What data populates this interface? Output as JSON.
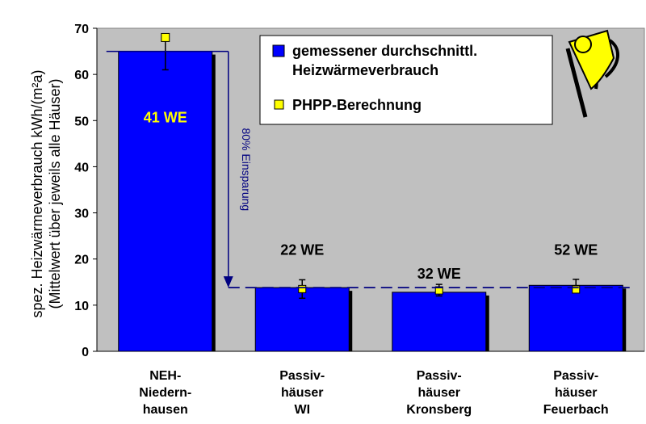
{
  "chart_data": {
    "type": "bar",
    "categories": [
      [
        "NEH-",
        "Niedern-",
        "hausen"
      ],
      [
        "Passiv-",
        "häuser",
        "WI"
      ],
      [
        "Passiv-",
        "häuser",
        "Kronsberg"
      ],
      [
        "Passiv-",
        "häuser",
        "Feuerbach"
      ]
    ],
    "series": [
      {
        "name": "gemessener durchschnittl. Heizwärmeverbrauch",
        "values": [
          65,
          13.8,
          12.8,
          14.3
        ],
        "error_low": [
          61,
          11.5,
          12.0,
          12.8
        ],
        "error_high": [
          68,
          15.5,
          14.5,
          15.6
        ],
        "color": "#0000ff"
      },
      {
        "name": "PHPP-Berechnung",
        "values": [
          68,
          13.5,
          13.2,
          13.4
        ],
        "color": "#ffff00"
      }
    ],
    "bar_labels": [
      "41 WE",
      "22 WE",
      "32 WE",
      "52 WE"
    ],
    "bar_label_colors": [
      "#ffff00",
      "#000000",
      "#000000",
      "#000000"
    ],
    "ylabel": [
      "spez. Heizwärmeverbrauch kWh/(m²a)",
      "(Mittelwert über jeweils alle Häuser)"
    ],
    "ylim": [
      0,
      70
    ],
    "yticks": [
      0,
      10,
      20,
      30,
      40,
      50,
      60,
      70
    ],
    "annotation": {
      "text": "80% Einsparung",
      "from_value": 65,
      "to_value": 13.8
    },
    "legend": {
      "placement": "top-right",
      "entries": [
        [
          "gemessener durchschnittl.",
          "Heizwärmeverbrauch"
        ],
        [
          "PHPP-Berechnung"
        ]
      ]
    },
    "plot_background": "#c0c0c0",
    "grid": false
  },
  "logo": {
    "icon": "passive-house-logo-icon",
    "colors": [
      "#ffff00",
      "#000000"
    ]
  }
}
